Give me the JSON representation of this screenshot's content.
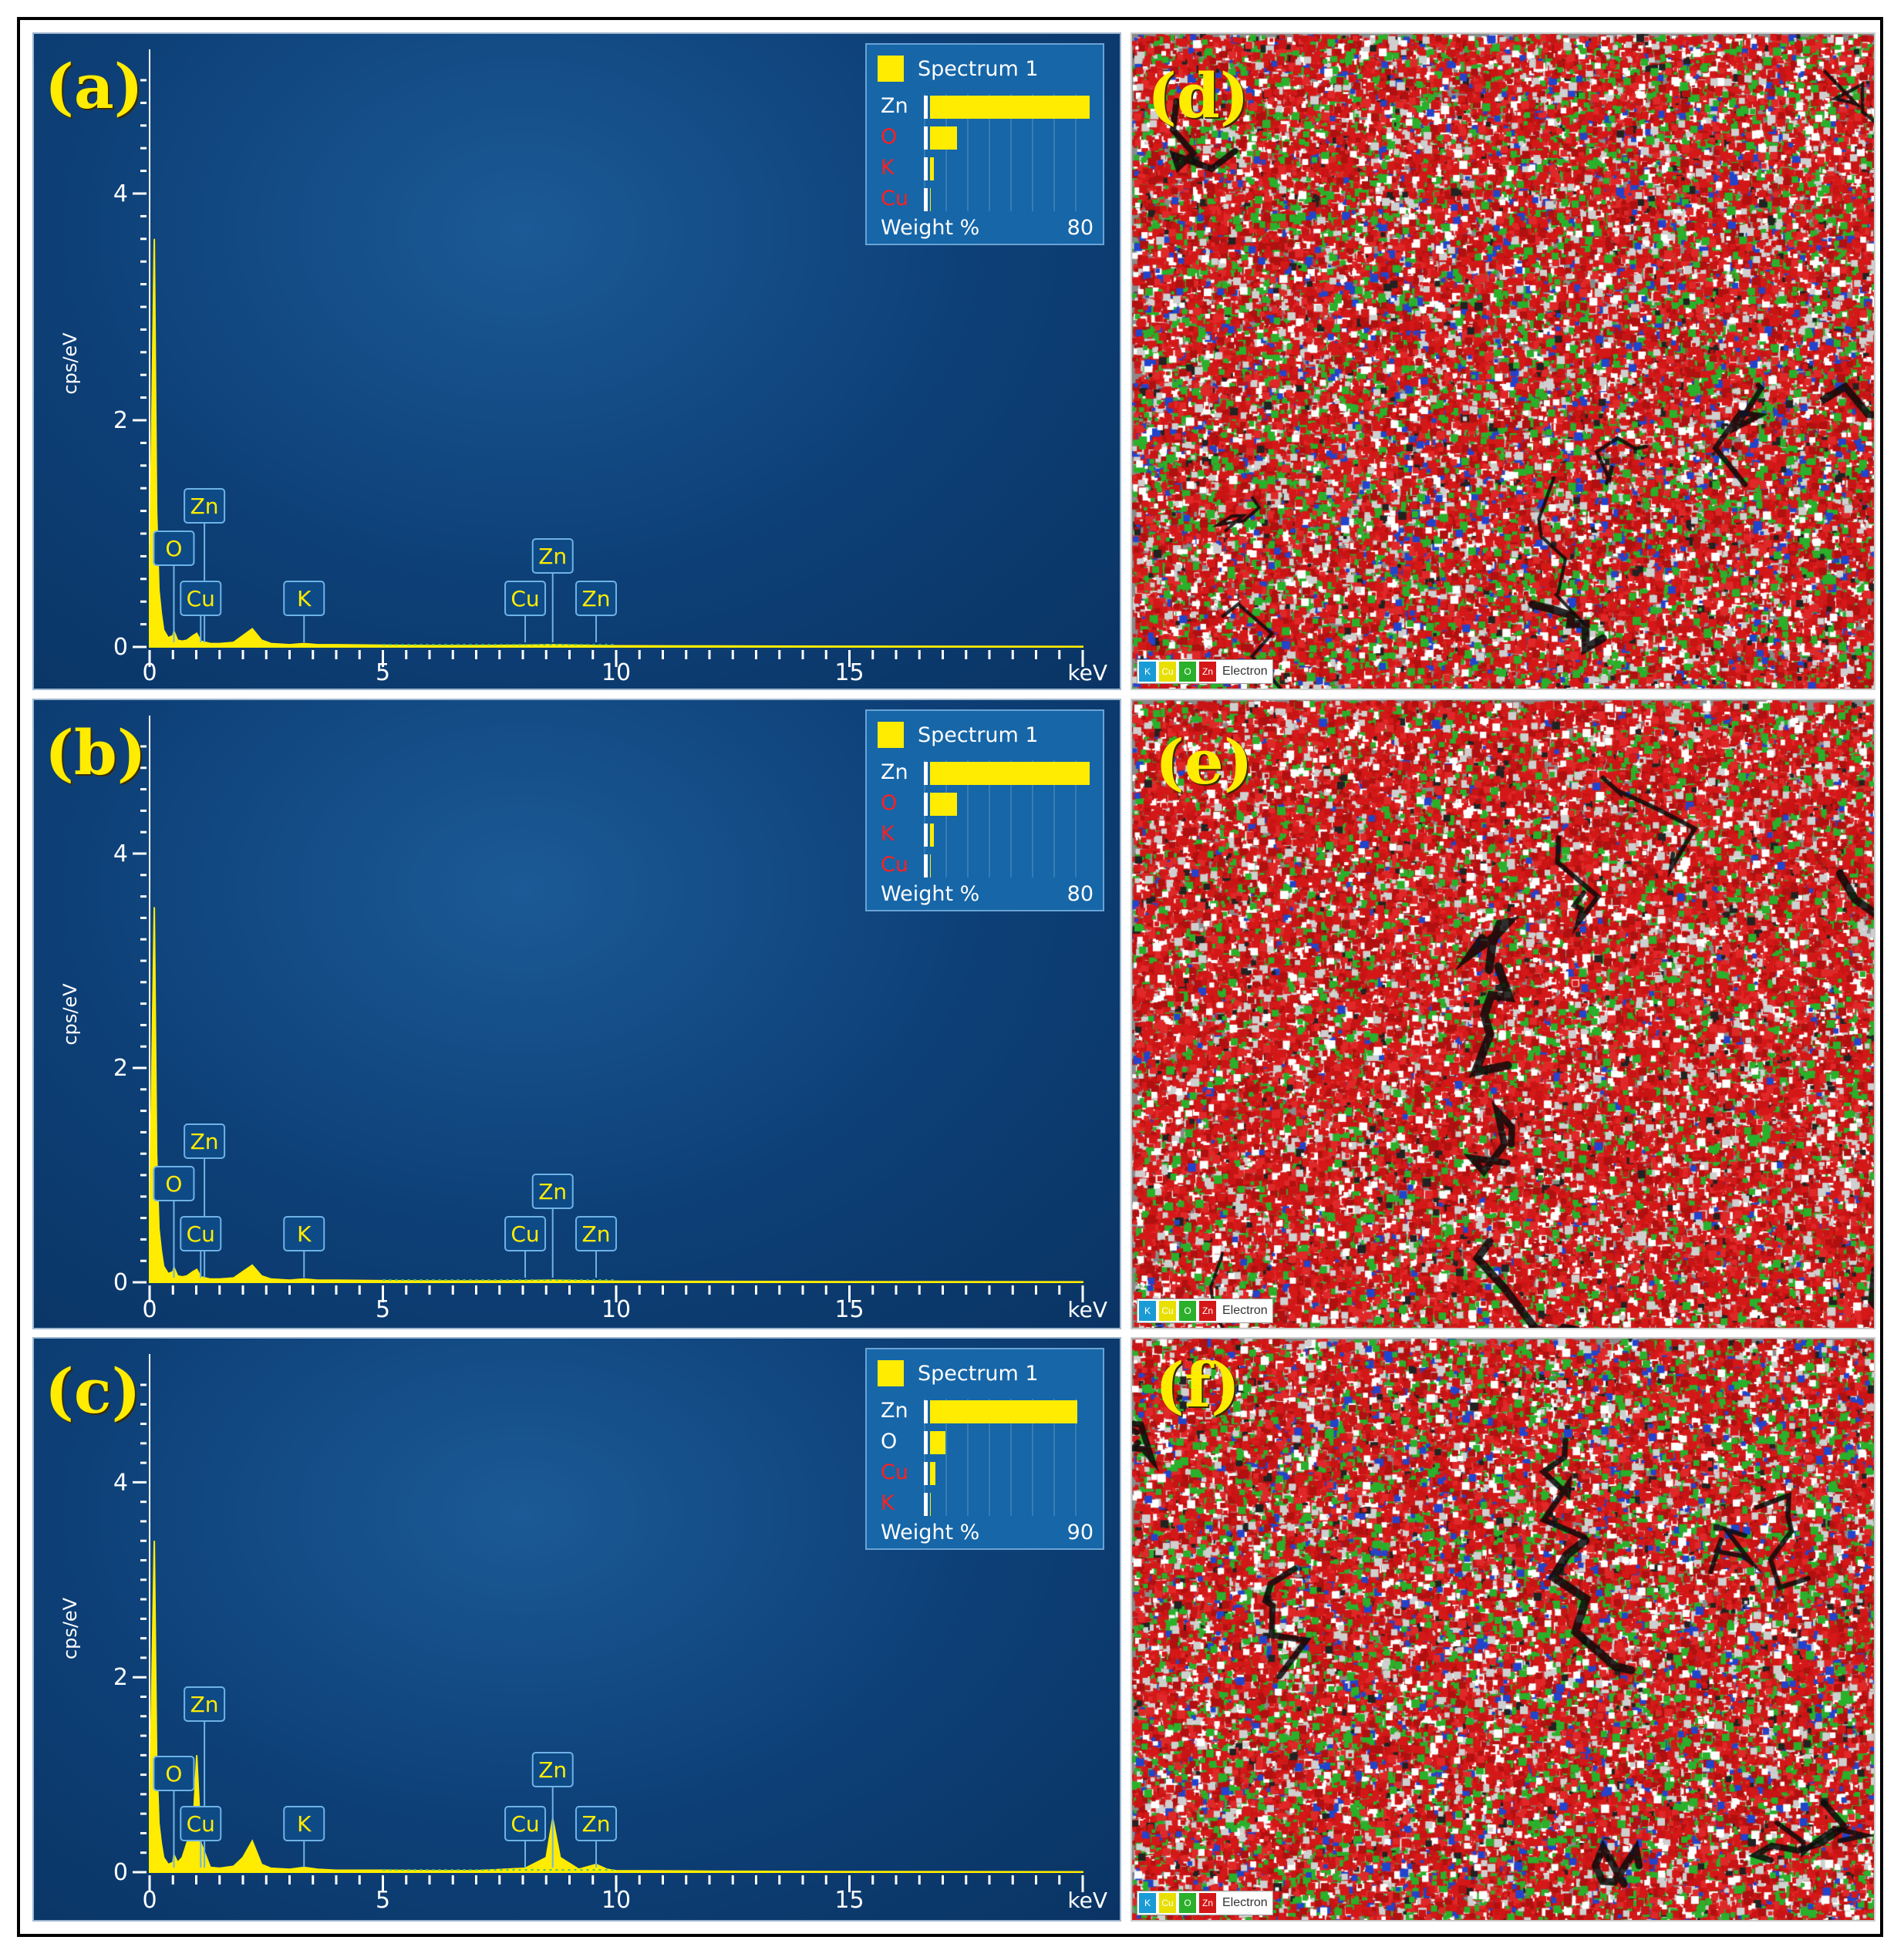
{
  "chart_data": [
    {
      "type": "line",
      "panel_label": "(a)",
      "xlabel": "keV",
      "ylabel": "cps/eV",
      "xlim": [
        0,
        20
      ],
      "ylim": [
        0,
        5
      ],
      "xticks": [
        "0",
        "5",
        "10",
        "15"
      ],
      "yticks": [
        "0",
        "2",
        "4"
      ],
      "series": [
        {
          "x": [
            0,
            0.1,
            0.15,
            0.2,
            0.25,
            0.3,
            0.4,
            0.5,
            0.52,
            0.6,
            0.7,
            0.8,
            0.93,
            1.01,
            1.1,
            1.3,
            1.5,
            1.8,
            2.0,
            2.2,
            2.4,
            2.6,
            3.0,
            3.31,
            3.6,
            4.0,
            5.0,
            6.0,
            7.0,
            8.05,
            8.64,
            9.57,
            10.0,
            12.0,
            15.0,
            20.0
          ],
          "values": [
            0.6,
            3.6,
            1.2,
            0.5,
            0.3,
            0.15,
            0.08,
            0.1,
            0.14,
            0.06,
            0.05,
            0.06,
            0.1,
            0.12,
            0.05,
            0.03,
            0.03,
            0.04,
            0.1,
            0.16,
            0.06,
            0.03,
            0.02,
            0.03,
            0.02,
            0.02,
            0.015,
            0.012,
            0.012,
            0.015,
            0.02,
            0.012,
            0.01,
            0.008,
            0.006,
            0.004
          ]
        }
      ],
      "peak_labels": [
        {
          "text": "O",
          "x": 0.52
        },
        {
          "text": "Zn",
          "x": 1.01
        },
        {
          "text": "Cu",
          "x": 0.93
        },
        {
          "text": "K",
          "x": 3.31
        },
        {
          "text": "Cu",
          "x": 8.05
        },
        {
          "text": "Zn",
          "x": 8.64
        },
        {
          "text": "Zn",
          "x": 9.57
        }
      ],
      "legend": {
        "title": "Spectrum 1",
        "elements": [
          {
            "name": "Zn",
            "value": 82,
            "color": "#ffffff"
          },
          {
            "name": "O",
            "value": 14,
            "color": "#ff2020"
          },
          {
            "name": "K",
            "value": 2,
            "color": "#ff2020"
          },
          {
            "name": "Cu",
            "value": 0.5,
            "color": "#ff2020"
          }
        ],
        "axis_label": "Weight %",
        "axis_max": "80"
      }
    },
    {
      "type": "line",
      "panel_label": "(b)",
      "xlabel": "keV",
      "ylabel": "cps/eV",
      "xlim": [
        0,
        20
      ],
      "ylim": [
        0,
        5
      ],
      "xticks": [
        "0",
        "5",
        "10",
        "15"
      ],
      "yticks": [
        "0",
        "2",
        "4"
      ],
      "series": [
        {
          "x": [
            0,
            0.1,
            0.15,
            0.2,
            0.25,
            0.3,
            0.4,
            0.5,
            0.52,
            0.6,
            0.7,
            0.8,
            0.93,
            1.01,
            1.1,
            1.3,
            1.5,
            1.8,
            2.0,
            2.2,
            2.4,
            2.6,
            3.0,
            3.31,
            3.6,
            4.0,
            5.0,
            6.0,
            7.0,
            8.05,
            8.64,
            9.57,
            10.0,
            12.0,
            15.0,
            20.0
          ],
          "values": [
            0.6,
            3.5,
            1.2,
            0.5,
            0.3,
            0.15,
            0.08,
            0.1,
            0.14,
            0.06,
            0.05,
            0.06,
            0.1,
            0.12,
            0.05,
            0.03,
            0.03,
            0.04,
            0.1,
            0.16,
            0.06,
            0.03,
            0.02,
            0.03,
            0.02,
            0.02,
            0.015,
            0.012,
            0.012,
            0.015,
            0.02,
            0.012,
            0.01,
            0.008,
            0.006,
            0.004
          ]
        }
      ],
      "peak_labels": [
        {
          "text": "O",
          "x": 0.52
        },
        {
          "text": "Zn",
          "x": 1.01
        },
        {
          "text": "Cu",
          "x": 0.93
        },
        {
          "text": "K",
          "x": 3.31
        },
        {
          "text": "Cu",
          "x": 8.05
        },
        {
          "text": "Zn",
          "x": 8.64
        },
        {
          "text": "Zn",
          "x": 9.57
        }
      ],
      "legend": {
        "title": "Spectrum 1",
        "elements": [
          {
            "name": "Zn",
            "value": 82,
            "color": "#ffffff"
          },
          {
            "name": "O",
            "value": 14,
            "color": "#ff2020"
          },
          {
            "name": "K",
            "value": 2,
            "color": "#ff2020"
          },
          {
            "name": "Cu",
            "value": 0.5,
            "color": "#ff2020"
          }
        ],
        "axis_label": "Weight %",
        "axis_max": "80"
      }
    },
    {
      "type": "line",
      "panel_label": "(c)",
      "xlabel": "keV",
      "ylabel": "cps/eV",
      "xlim": [
        0,
        20
      ],
      "ylim": [
        0,
        5
      ],
      "xticks": [
        "0",
        "5",
        "10",
        "15"
      ],
      "yticks": [
        "0",
        "2",
        "4"
      ],
      "series": [
        {
          "x": [
            0,
            0.1,
            0.15,
            0.2,
            0.25,
            0.3,
            0.4,
            0.5,
            0.52,
            0.6,
            0.7,
            0.8,
            0.93,
            1.01,
            1.1,
            1.3,
            1.5,
            1.8,
            2.0,
            2.2,
            2.4,
            2.6,
            3.0,
            3.31,
            3.6,
            4.0,
            5.0,
            6.0,
            7.0,
            8.05,
            8.5,
            8.64,
            8.8,
            9.2,
            9.57,
            9.8,
            10.0,
            12.0,
            15.0,
            20.0
          ],
          "values": [
            0.6,
            3.4,
            1.2,
            0.5,
            0.3,
            0.15,
            0.08,
            0.1,
            0.18,
            0.1,
            0.15,
            0.3,
            0.45,
            1.2,
            0.3,
            0.05,
            0.04,
            0.06,
            0.15,
            0.32,
            0.08,
            0.04,
            0.03,
            0.05,
            0.03,
            0.02,
            0.02,
            0.015,
            0.015,
            0.04,
            0.15,
            0.55,
            0.15,
            0.03,
            0.08,
            0.03,
            0.015,
            0.01,
            0.006,
            0.004
          ]
        }
      ],
      "peak_labels": [
        {
          "text": "O",
          "x": 0.52
        },
        {
          "text": "Zn",
          "x": 1.01
        },
        {
          "text": "Cu",
          "x": 0.93
        },
        {
          "text": "K",
          "x": 3.31
        },
        {
          "text": "Cu",
          "x": 8.05
        },
        {
          "text": "Zn",
          "x": 8.64
        },
        {
          "text": "Zn",
          "x": 9.57
        }
      ],
      "legend": {
        "title": "Spectrum 1",
        "elements": [
          {
            "name": "Zn",
            "value": 85,
            "color": "#ffffff"
          },
          {
            "name": "O",
            "value": 9,
            "color": "#ffffff"
          },
          {
            "name": "Cu",
            "value": 3,
            "color": "#ff2020"
          },
          {
            "name": "K",
            "value": 0.5,
            "color": "#ff2020"
          }
        ],
        "axis_label": "Weight %",
        "axis_max": "90"
      }
    }
  ],
  "maps": [
    {
      "panel_label": "(d)",
      "legend_chips": [
        {
          "text": "K",
          "color": "#1a9bd6"
        },
        {
          "text": "Cu",
          "color": "#e8e000"
        },
        {
          "text": "O",
          "color": "#2ab02a"
        },
        {
          "text": "Zn",
          "color": "#d41818"
        }
      ],
      "legend_text": "Electron"
    },
    {
      "panel_label": "(e)",
      "legend_chips": [
        {
          "text": "K",
          "color": "#1a9bd6"
        },
        {
          "text": "Cu",
          "color": "#e8e000"
        },
        {
          "text": "O",
          "color": "#2ab02a"
        },
        {
          "text": "Zn",
          "color": "#d41818"
        }
      ],
      "legend_text": "Electron"
    },
    {
      "panel_label": "(f)",
      "legend_chips": [
        {
          "text": "K",
          "color": "#1a9bd6"
        },
        {
          "text": "Cu",
          "color": "#e8e000"
        },
        {
          "text": "O",
          "color": "#2ab02a"
        },
        {
          "text": "Zn",
          "color": "#d41818"
        }
      ],
      "legend_text": "Electron"
    }
  ],
  "colors": {
    "spectrum": "#ffec00",
    "panel_bg": "#0d3f76",
    "label": "#ffec00"
  }
}
